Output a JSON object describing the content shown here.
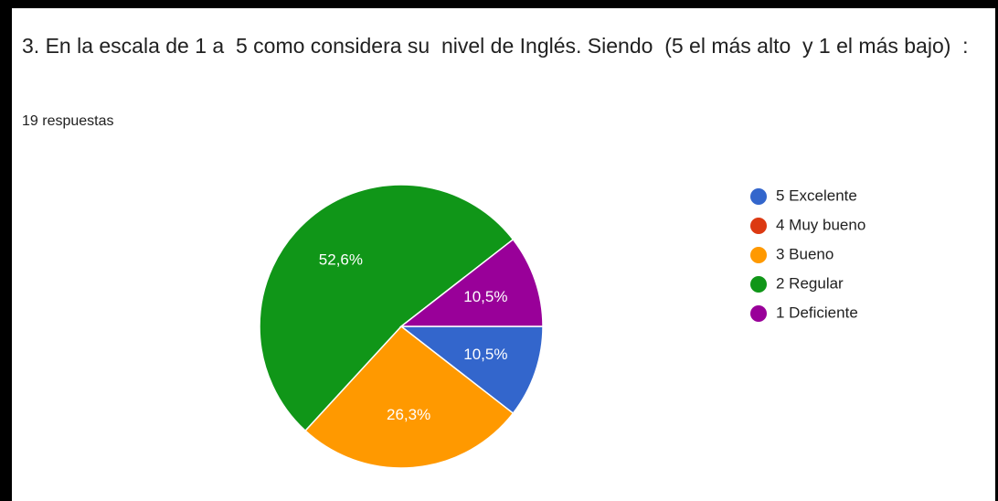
{
  "chart_data": {
    "type": "pie",
    "title": "3. En la escala de 1 a  5 como considera su  nivel de Inglés. Siendo  (5 el más alto  y 1 el más bajo)  :",
    "subtitle": "19 respuestas",
    "categories": [
      "5 Excelente",
      "4 Muy bueno",
      "3 Bueno",
      "2 Regular",
      "1 Deficiente"
    ],
    "values": [
      10.5,
      0,
      26.3,
      52.6,
      10.5
    ],
    "value_labels": [
      "10,5%",
      null,
      "26,3%",
      "52,6%",
      "10,5%"
    ],
    "colors": [
      "#3366cc",
      "#dc3912",
      "#ff9900",
      "#109618",
      "#990099"
    ],
    "legend": "right"
  }
}
